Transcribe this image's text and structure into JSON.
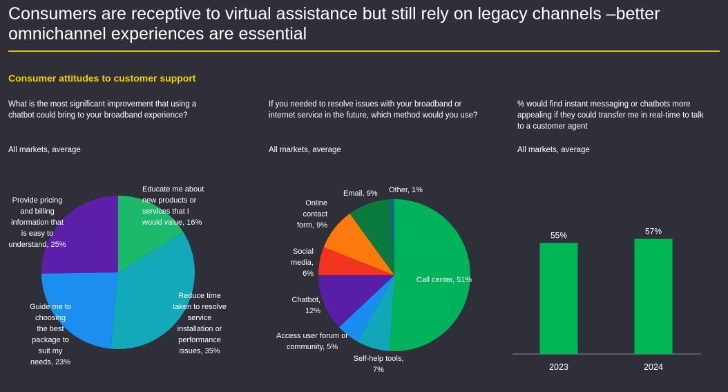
{
  "header": {
    "title": "Consumers are receptive to virtual assistance but still rely on legacy channels –better omnichannel experiences are essential",
    "section_title": "Consumer attitudes to customer support"
  },
  "colors": {
    "background": "#2f2f39",
    "accent_rule": "#e8c000",
    "section_title": "#f2d000",
    "bar": "#00b756"
  },
  "chart_data": [
    {
      "type": "pie",
      "question": "What is the most significant improvement that using a chatbot could bring to your broadband experience?",
      "subtitle": "All markets, average",
      "slices": [
        {
          "label": "Educate me about\nnew products or\nservices that I\nwould value, 16%",
          "value": 16,
          "color": "#1db96a"
        },
        {
          "label": "Reduce time\ntaken to resolve\nservice\ninstallation or\nperformance\nissues, 35%",
          "value": 35,
          "color": "#12a9b9"
        },
        {
          "label": "Guide me to\nchoosing\nthe best\npackage to\nsuit my\nneeds, 23%",
          "value": 23,
          "color": "#1b8ff0"
        },
        {
          "label": "Provide pricing\nand billing\ninformation that\nis easy to\nunderstand, 25%",
          "value": 25,
          "color": "#5b1fa8"
        }
      ]
    },
    {
      "type": "pie",
      "question": "If you needed to resolve issues with your broadband or internet service in the future, which method would you use?",
      "subtitle": "All markets, average",
      "slices": [
        {
          "label": "Call center, 51%",
          "value": 51,
          "color": "#00b35a"
        },
        {
          "label": "Self-help tools,\n7%",
          "value": 7,
          "color": "#10a8b6"
        },
        {
          "label": "Access user forum or\ncommunity, 5%",
          "value": 5,
          "color": "#1a8ef0"
        },
        {
          "label": "Chatbot,\n12%",
          "value": 12,
          "color": "#5a1ea6"
        },
        {
          "label": "Social\nmedia,\n6%",
          "value": 6,
          "color": "#f2331f"
        },
        {
          "label": "Online\ncontact\nform, 9%",
          "value": 9,
          "color": "#ff7a0c"
        },
        {
          "label": "Email, 9%",
          "value": 9,
          "color": "#0a7a3e"
        },
        {
          "label": "Other, 1%",
          "value": 1,
          "color": "#0d6b8a"
        }
      ]
    },
    {
      "type": "bar",
      "question": "% would find instant messaging or chatbots more appealing if they could transfer me in real-time to talk to a customer agent",
      "subtitle": "All markets, average",
      "categories": [
        "2023",
        "2024"
      ],
      "values": [
        55,
        57
      ],
      "value_labels": [
        "55%",
        "57%"
      ],
      "ylim": [
        0,
        100
      ]
    }
  ]
}
